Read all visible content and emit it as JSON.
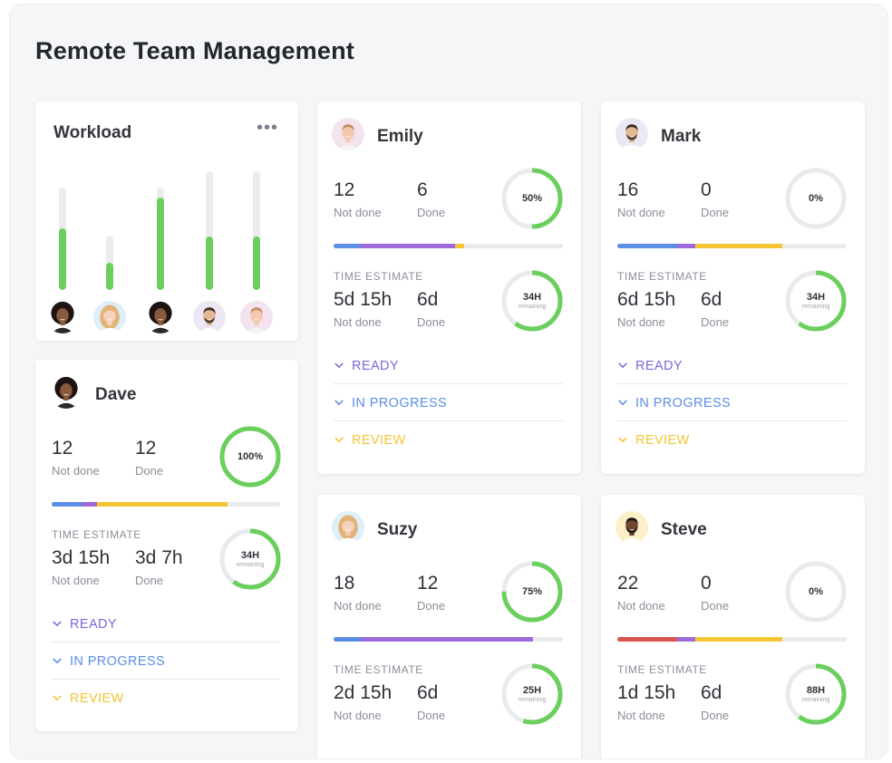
{
  "page": {
    "title": "Remote Team Management"
  },
  "colors": {
    "green": "#6bcf5d",
    "blue": "#5b8ee6",
    "purple": "#9c6ad9",
    "yellow": "#f5c634",
    "red": "#d9534f",
    "track": "#e9eaec",
    "ready": "#7b68d9",
    "in_progress": "#5b8ee6",
    "review": "#f3c534"
  },
  "workload": {
    "title": "Workload",
    "more_icon": "more-dots-icon",
    "bars": [
      {
        "level": 0.6,
        "avatar": "dave"
      },
      {
        "level": 0.5,
        "avatar": "suzy"
      },
      {
        "level": 0.9,
        "avatar": "dave"
      },
      {
        "level": 0.45,
        "avatar": "mark"
      },
      {
        "level": 0.45,
        "avatar": "emily"
      }
    ]
  },
  "people": {
    "emily": {
      "name": "Emily",
      "not_done": "12",
      "done": "6",
      "not_done_label": "Not done",
      "done_label": "Done",
      "percent": "50%",
      "percent_value": 50,
      "progress": [
        {
          "color": "#5b8ee6",
          "frac": 0.12
        },
        {
          "color": "#9c6ad9",
          "frac": 0.41
        },
        {
          "color": "#f5c634",
          "frac": 0.04
        }
      ],
      "time_label": "TIME ESTIMATE",
      "time_not_done": "5d 15h",
      "time_done": "6d",
      "remaining": "34H",
      "remaining_label": "remaining",
      "remaining_value": 0.6,
      "statuses": [
        "READY",
        "IN PROGRESS",
        "REVIEW"
      ]
    },
    "mark": {
      "name": "Mark",
      "not_done": "16",
      "done": "0",
      "not_done_label": "Not done",
      "done_label": "Done",
      "percent": "0%",
      "percent_value": 0,
      "progress": [
        {
          "color": "#5b8ee6",
          "frac": 0.26
        },
        {
          "color": "#9c6ad9",
          "frac": 0.08
        },
        {
          "color": "#f5c634",
          "frac": 0.38
        }
      ],
      "time_label": "TIME ESTIMATE",
      "time_not_done": "6d 15h",
      "time_done": "6d",
      "remaining": "34H",
      "remaining_label": "remaining",
      "remaining_value": 0.6,
      "statuses": [
        "READY",
        "IN PROGRESS",
        "REVIEW"
      ]
    },
    "dave": {
      "name": "Dave",
      "not_done": "12",
      "done": "12",
      "not_done_label": "Not done",
      "done_label": "Done",
      "percent": "100%",
      "percent_value": 100,
      "progress": [
        {
          "color": "#5b8ee6",
          "frac": 0.13
        },
        {
          "color": "#9c6ad9",
          "frac": 0.07
        },
        {
          "color": "#f5c634",
          "frac": 0.57
        }
      ],
      "time_label": "TIME ESTIMATE",
      "time_not_done": "3d 15h",
      "time_done": "3d 7h",
      "remaining": "34H",
      "remaining_label": "remaining",
      "remaining_value": 0.6,
      "statuses": [
        "READY",
        "IN PROGRESS",
        "REVIEW"
      ]
    },
    "suzy": {
      "name": "Suzy",
      "not_done": "18",
      "done": "12",
      "not_done_label": "Not done",
      "done_label": "Done",
      "percent": "75%",
      "percent_value": 75,
      "progress": [
        {
          "color": "#5b8ee6",
          "frac": 0.12
        },
        {
          "color": "#9c6ad9",
          "frac": 0.75
        }
      ],
      "time_label": "TIME ESTIMATE",
      "time_not_done": "2d 15h",
      "time_done": "6d",
      "remaining": "25H",
      "remaining_label": "remaining",
      "remaining_value": 0.55,
      "statuses": []
    },
    "steve": {
      "name": "Steve",
      "not_done": "22",
      "done": "0",
      "not_done_label": "Not done",
      "done_label": "Done",
      "percent": "0%",
      "percent_value": 0,
      "progress": [
        {
          "color": "#d9534f",
          "frac": 0.26
        },
        {
          "color": "#9c6ad9",
          "frac": 0.08
        },
        {
          "color": "#f5c634",
          "frac": 0.38
        }
      ],
      "time_label": "TIME ESTIMATE",
      "time_not_done": "1d 15h",
      "time_done": "6d",
      "remaining": "88H",
      "remaining_label": "remaining",
      "remaining_value": 0.6,
      "statuses": []
    }
  }
}
